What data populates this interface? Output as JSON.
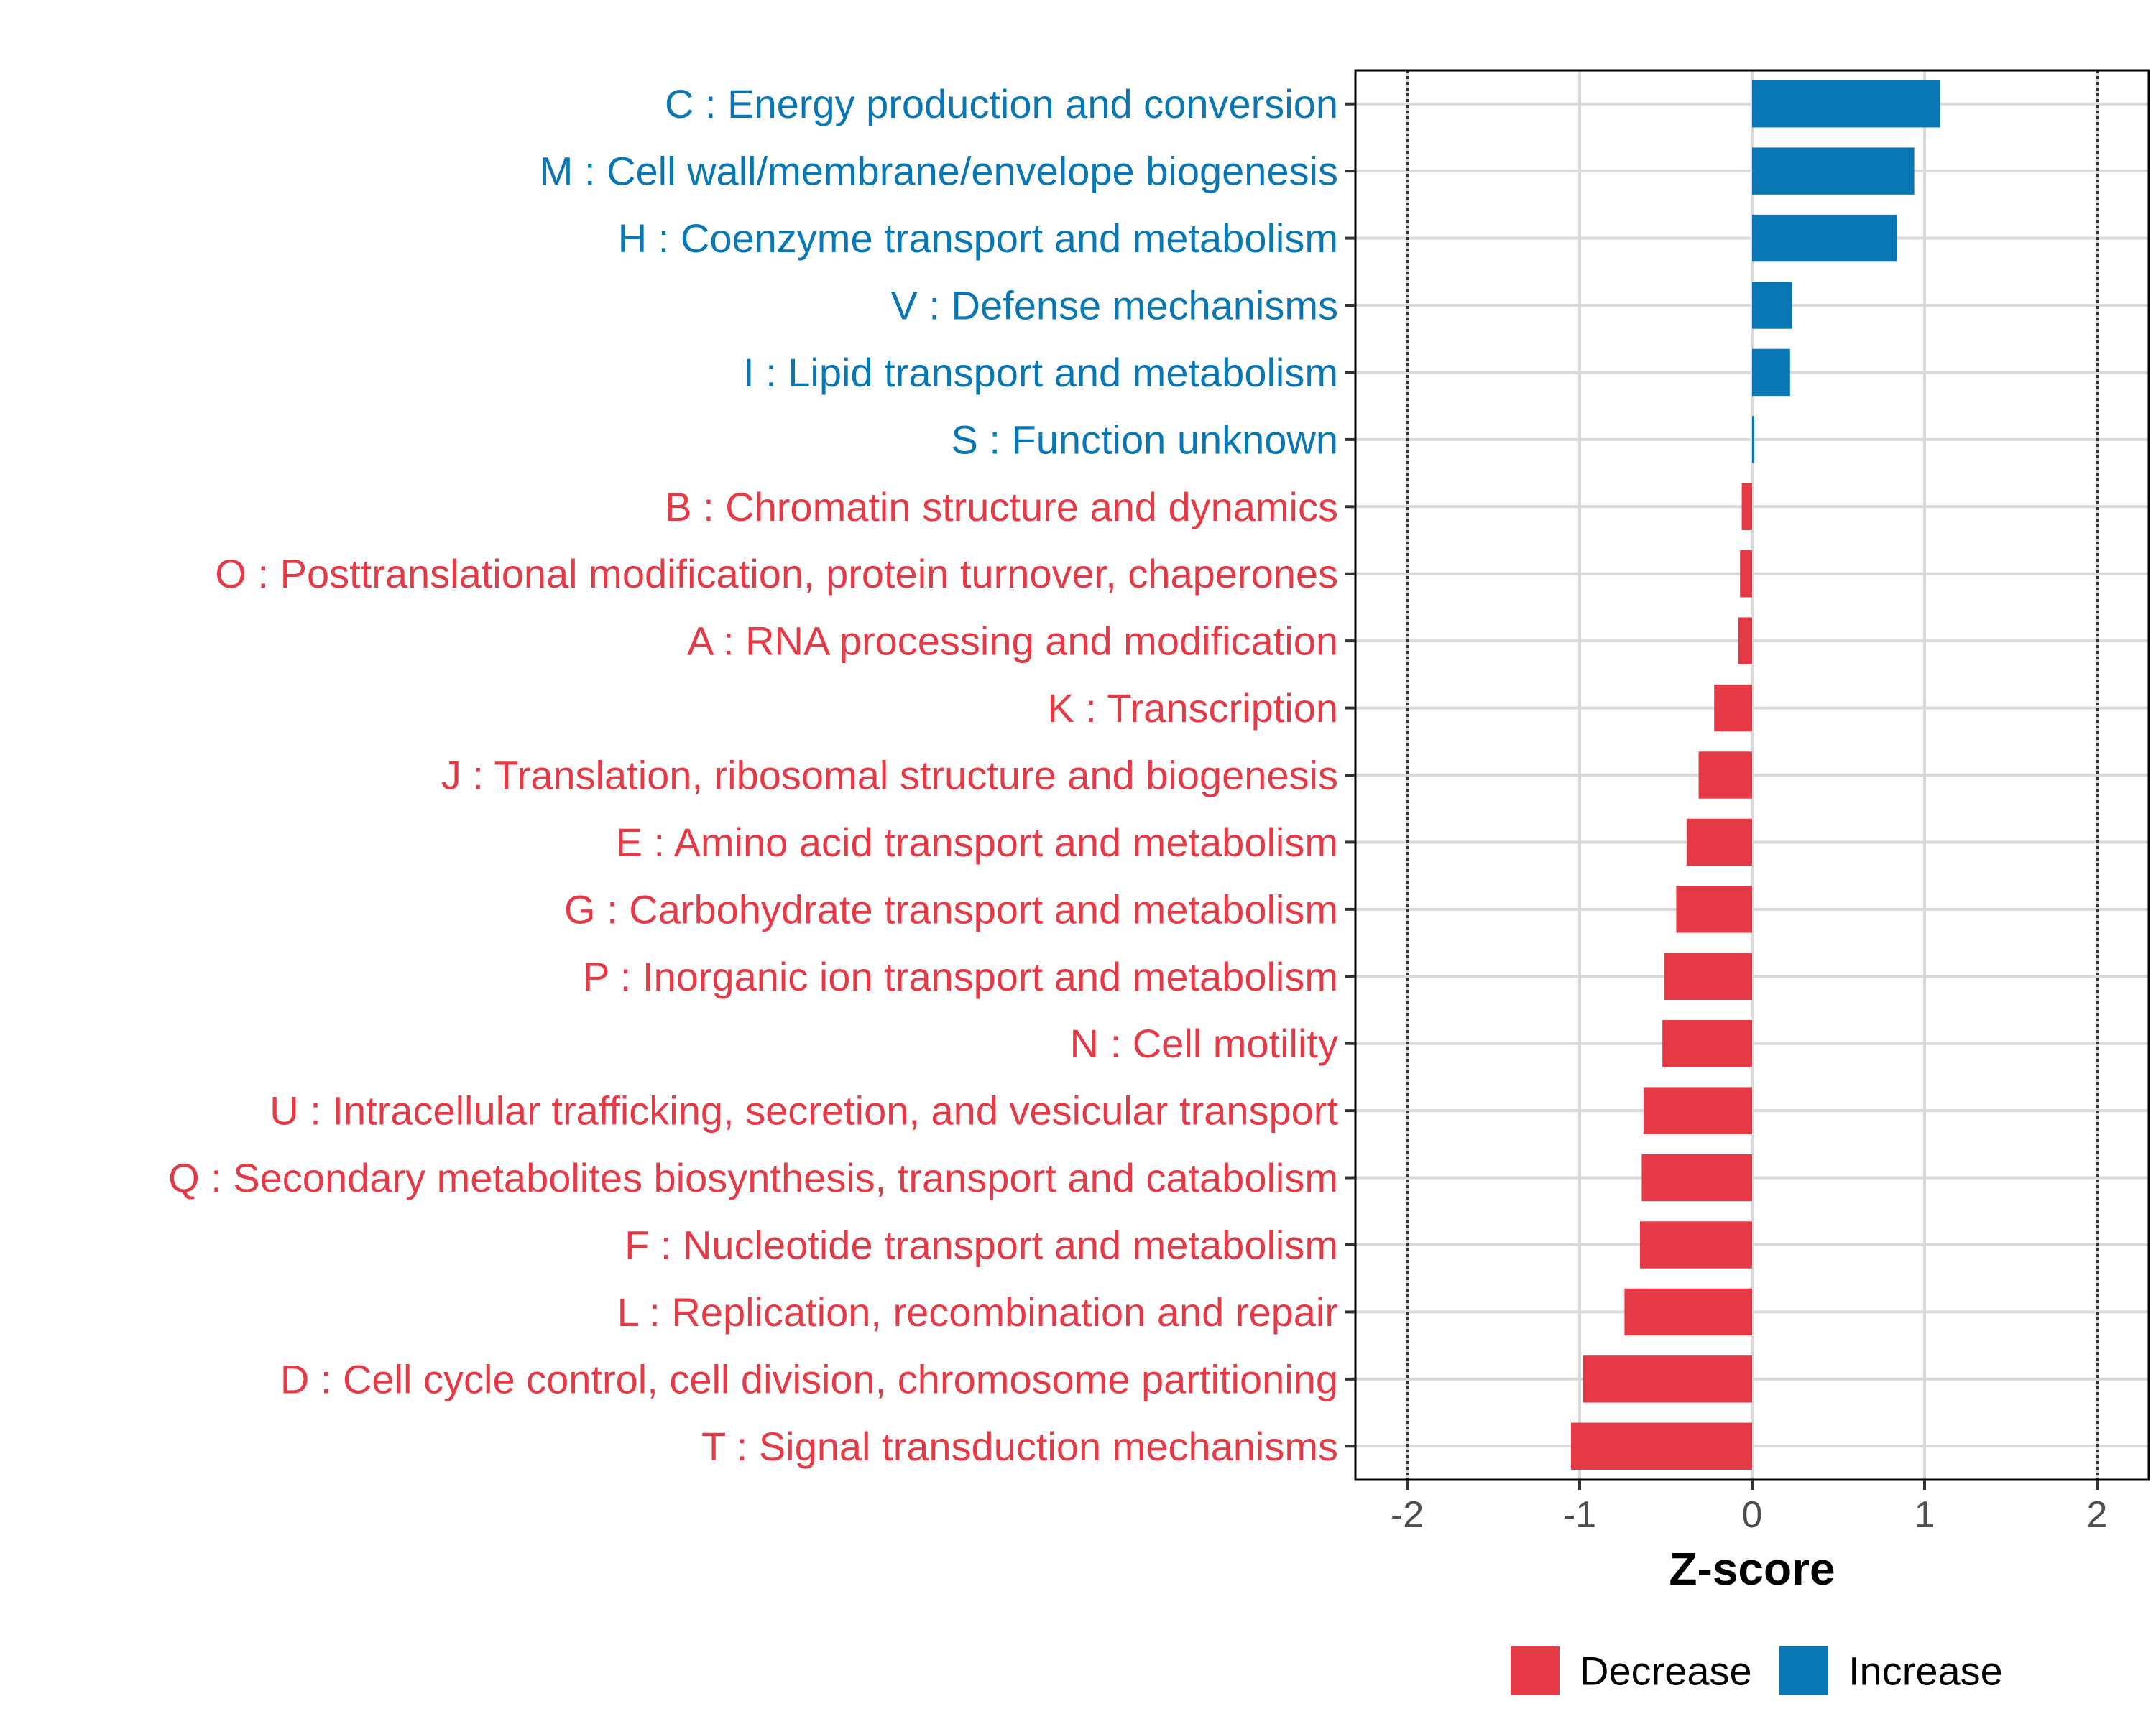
{
  "chart_data": {
    "type": "bar",
    "orientation": "horizontal",
    "xlabel": "Z-score",
    "xlim": [
      -2.3,
      2.3
    ],
    "xticks": [
      -2,
      -1,
      0,
      1,
      2
    ],
    "xtick_labels": [
      "-2",
      "-1",
      "0",
      "1",
      "2"
    ],
    "reference_lines": [
      -2,
      2
    ],
    "grid": true,
    "legend_position": "bottom",
    "colors": {
      "Decrease": "#e63946",
      "Increase": "#0a77b5"
    },
    "legend": [
      "Decrease",
      "Increase"
    ],
    "categories": [
      "C : Energy production and conversion",
      "M : Cell wall/membrane/envelope biogenesis",
      "H : Coenzyme transport and metabolism",
      "V : Defense mechanisms",
      "I : Lipid transport and metabolism",
      "S : Function unknown",
      "B : Chromatin structure and dynamics",
      "O : Posttranslational modification, protein turnover, chaperones",
      "A : RNA processing and modification",
      "K : Transcription",
      "J : Translation, ribosomal structure and biogenesis",
      "E : Amino acid transport and metabolism",
      "G : Carbohydrate transport and metabolism",
      "P : Inorganic ion transport and metabolism",
      "N : Cell motility",
      "U : Intracellular trafficking, secretion, and vesicular transport",
      "Q : Secondary metabolites biosynthesis, transport and catabolism",
      "F : Nucleotide transport and metabolism",
      "L : Replication, recombination and repair",
      "D : Cell cycle control, cell division, chromosome partitioning",
      "T : Signal transduction mechanisms"
    ],
    "values": [
      1.09,
      0.94,
      0.84,
      0.23,
      0.22,
      0.01,
      -0.06,
      -0.07,
      -0.08,
      -0.22,
      -0.31,
      -0.38,
      -0.44,
      -0.51,
      -0.52,
      -0.63,
      -0.64,
      -0.65,
      -0.74,
      -0.98,
      -1.05
    ],
    "groups": [
      "Increase",
      "Increase",
      "Increase",
      "Increase",
      "Increase",
      "Increase",
      "Decrease",
      "Decrease",
      "Decrease",
      "Decrease",
      "Decrease",
      "Decrease",
      "Decrease",
      "Decrease",
      "Decrease",
      "Decrease",
      "Decrease",
      "Decrease",
      "Decrease",
      "Decrease",
      "Decrease"
    ]
  }
}
